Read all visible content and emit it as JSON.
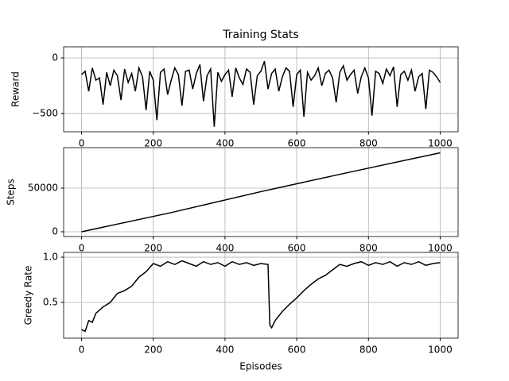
{
  "chart_data": [
    {
      "type": "line",
      "title": "Training Stats",
      "ylabel": "Reward",
      "xlim": [
        -50,
        1050
      ],
      "xticks": [
        0,
        200,
        400,
        600,
        800,
        1000
      ],
      "ylim": [
        -665,
        100
      ],
      "yticks": [
        {
          "value": -500,
          "label": "−500"
        },
        0
      ],
      "grid": true,
      "x": [
        0,
        10,
        20,
        30,
        40,
        50,
        60,
        70,
        80,
        90,
        100,
        110,
        120,
        130,
        140,
        150,
        160,
        170,
        180,
        190,
        200,
        210,
        220,
        230,
        240,
        250,
        260,
        270,
        280,
        290,
        300,
        310,
        320,
        330,
        340,
        350,
        360,
        370,
        380,
        390,
        400,
        410,
        420,
        430,
        440,
        450,
        460,
        470,
        480,
        490,
        500,
        510,
        520,
        530,
        540,
        550,
        560,
        570,
        580,
        590,
        600,
        610,
        620,
        630,
        640,
        650,
        660,
        670,
        680,
        690,
        700,
        710,
        720,
        730,
        740,
        750,
        760,
        770,
        780,
        790,
        800,
        810,
        820,
        830,
        840,
        850,
        860,
        870,
        880,
        890,
        900,
        910,
        920,
        930,
        940,
        950,
        960,
        970,
        980,
        990,
        1000
      ],
      "series": [
        {
          "name": "Reward",
          "color": "#000000",
          "values": [
            -150,
            -120,
            -300,
            -90,
            -200,
            -180,
            -420,
            -130,
            -250,
            -110,
            -160,
            -380,
            -100,
            -220,
            -140,
            -300,
            -90,
            -170,
            -470,
            -120,
            -200,
            -560,
            -130,
            -100,
            -330,
            -200,
            -90,
            -150,
            -430,
            -120,
            -110,
            -280,
            -140,
            -60,
            -390,
            -160,
            -100,
            -620,
            -130,
            -210,
            -150,
            -110,
            -350,
            -90,
            -180,
            -240,
            -100,
            -130,
            -420,
            -160,
            -120,
            -30,
            -280,
            -140,
            -100,
            -300,
            -170,
            -90,
            -120,
            -440,
            -150,
            -110,
            -530,
            -130,
            -200,
            -160,
            -90,
            -250,
            -140,
            -110,
            -180,
            -400,
            -130,
            -70,
            -200,
            -150,
            -110,
            -320,
            -170,
            -90,
            -180,
            -520,
            -120,
            -140,
            -230,
            -100,
            -160,
            -80,
            -440,
            -150,
            -120,
            -200,
            -110,
            -300,
            -170,
            -140,
            -460,
            -110,
            -130,
            -170,
            -220
          ]
        }
      ]
    },
    {
      "type": "line",
      "ylabel": "Steps",
      "xlim": [
        -50,
        1050
      ],
      "xticks": [
        0,
        200,
        400,
        600,
        800,
        1000
      ],
      "ylim": [
        -5450,
        96400
      ],
      "yticks": [
        0,
        50000
      ],
      "grid": true,
      "x": [
        0,
        250,
        500,
        750,
        1000
      ],
      "series": [
        {
          "name": "Steps",
          "color": "#000000",
          "values": [
            0,
            22000,
            46000,
            68500,
            90500
          ]
        }
      ]
    },
    {
      "type": "line",
      "ylabel": "Greedy Rate",
      "xlabel": "Episodes",
      "xlim": [
        -50,
        1050
      ],
      "xticks": [
        0,
        200,
        400,
        600,
        800,
        1000
      ],
      "ylim": [
        0.105,
        1.053
      ],
      "yticks": [
        0.5,
        {
          "value": 1.0,
          "label": "1.0"
        }
      ],
      "grid": true,
      "x": [
        0,
        10,
        20,
        30,
        40,
        60,
        80,
        100,
        120,
        140,
        160,
        180,
        200,
        220,
        240,
        260,
        280,
        300,
        320,
        340,
        360,
        380,
        400,
        420,
        440,
        460,
        480,
        500,
        520,
        525,
        530,
        540,
        560,
        580,
        600,
        620,
        640,
        660,
        680,
        700,
        720,
        740,
        760,
        780,
        800,
        820,
        840,
        860,
        880,
        900,
        920,
        940,
        960,
        980,
        1000
      ],
      "series": [
        {
          "name": "Greedy Rate",
          "color": "#000000",
          "values": [
            0.2,
            0.18,
            0.3,
            0.28,
            0.38,
            0.45,
            0.5,
            0.6,
            0.63,
            0.68,
            0.78,
            0.84,
            0.93,
            0.9,
            0.95,
            0.92,
            0.96,
            0.93,
            0.9,
            0.95,
            0.92,
            0.94,
            0.9,
            0.95,
            0.92,
            0.94,
            0.91,
            0.93,
            0.92,
            0.25,
            0.22,
            0.3,
            0.4,
            0.48,
            0.55,
            0.63,
            0.7,
            0.76,
            0.8,
            0.86,
            0.92,
            0.9,
            0.93,
            0.95,
            0.91,
            0.94,
            0.92,
            0.95,
            0.9,
            0.94,
            0.92,
            0.95,
            0.91,
            0.93,
            0.94
          ]
        }
      ]
    }
  ]
}
